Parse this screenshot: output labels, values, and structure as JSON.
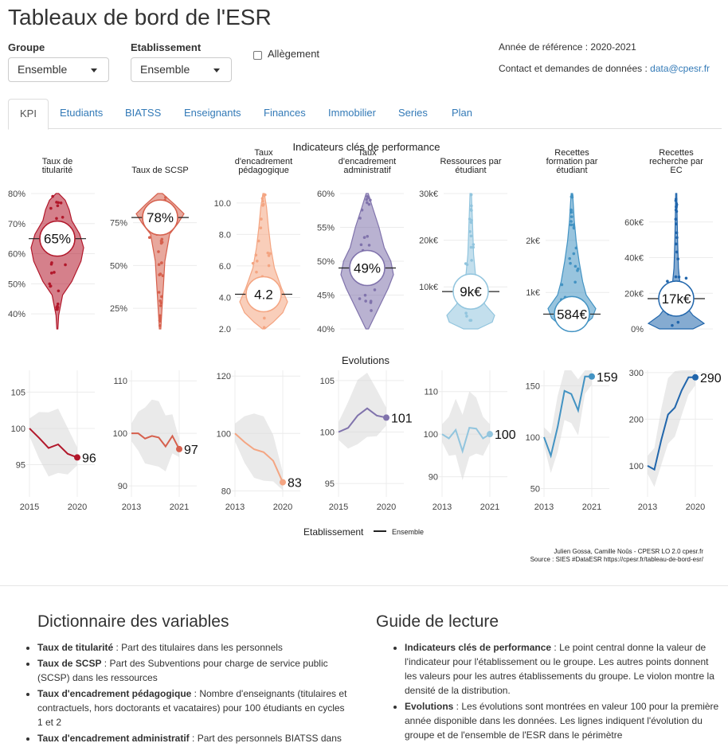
{
  "header": {
    "title": "Tableaux de bord de l'ESR"
  },
  "controls": {
    "groupe_label": "Groupe",
    "groupe_value": "Ensemble",
    "etab_label": "Etablissement",
    "etab_value": "Ensemble",
    "allegement_label": "Allègement",
    "annee": "Année de référence : 2020-2021",
    "contact_prefix": "Contact et demandes de données : ",
    "contact_email": "data@cpesr.fr"
  },
  "tabs": [
    "KPI",
    "Etudiants",
    "BIATSS",
    "Enseignants",
    "Finances",
    "Immobilier",
    "Series",
    "Plan"
  ],
  "figure": {
    "title_kpi": "Indicateurs clés de performance",
    "title_evol": "Evolutions",
    "legend_title": "Etablissement",
    "legend_item": "Ensemble",
    "credit1": "Julien Gossa, Camille Noûs - CPESR LO 2.0 cpesr.fr",
    "credit2": "Source : SIES #DataESR https://cpesr.fr/tableau-de-bord-esr/"
  },
  "colors": {
    "c1": "#b2182b",
    "c2": "#d6604d",
    "c3": "#f4a582",
    "c4": "#8073ac",
    "c5": "#92c5de",
    "c6": "#4393c3",
    "c7": "#2166ac"
  },
  "chart_data": [
    {
      "type": "violin",
      "panels": [
        {
          "title": [
            "Taux de",
            "titularité"
          ],
          "value_label": "65%",
          "value": 65,
          "ylim": [
            35,
            80
          ],
          "ticks": [
            "40%",
            "50%",
            "60%",
            "70%",
            "80%"
          ]
        },
        {
          "title": [
            "Taux de SCSP"
          ],
          "value_label": "78%",
          "value": 78,
          "ylim": [
            13,
            92
          ],
          "ticks": [
            "25%",
            "50%",
            "75%"
          ]
        },
        {
          "title": [
            "Taux",
            "d'encadrement",
            "pédagogique"
          ],
          "value_label": "4.2",
          "value": 4.2,
          "ylim": [
            2,
            10.6
          ],
          "ticks": [
            "2.0",
            "4.0",
            "6.0",
            "8.0",
            "10.0"
          ]
        },
        {
          "title": [
            "Taux",
            "d'encadrement",
            "administratif"
          ],
          "value_label": "49%",
          "value": 49,
          "ylim": [
            40,
            60
          ],
          "ticks": [
            "40%",
            "45%",
            "50%",
            "55%",
            "60%"
          ]
        },
        {
          "title": [
            "Ressources par",
            "étudiant"
          ],
          "value_label": "9k€",
          "value": 9,
          "ylim": [
            1,
            30
          ],
          "ticks": [
            "10k€",
            "20k€",
            "30k€"
          ]
        },
        {
          "title": [
            "Recettes",
            "formation par",
            "étudiant"
          ],
          "value_label": "584€",
          "value": 584,
          "ylim": [
            300,
            2900
          ],
          "ticks": [
            "1k€",
            "2k€"
          ]
        },
        {
          "title": [
            "Recettes",
            "recherche par",
            "EC"
          ],
          "value_label": "17k€",
          "value": 17,
          "ylim": [
            0,
            76
          ],
          "ticks": [
            "0%",
            "20k€",
            "40k€",
            "60k€"
          ]
        }
      ]
    },
    {
      "type": "line",
      "series_label": "Ensemble",
      "panels": [
        {
          "x": [
            2015,
            2016,
            2017,
            2018,
            2019,
            2020
          ],
          "y": [
            100,
            98.7,
            97.3,
            97.8,
            96.5,
            96
          ],
          "end_label": "96",
          "ylim": [
            91,
            108
          ],
          "yticks": [
            "95",
            "100",
            "105"
          ],
          "xticks": [
            "2015",
            "2020"
          ]
        },
        {
          "x": [
            2013,
            2014,
            2015,
            2016,
            2017,
            2018,
            2019,
            2020
          ],
          "y": [
            100,
            100,
            99,
            99.5,
            99.2,
            97.5,
            99.5,
            97
          ],
          "end_label": "97",
          "ylim": [
            88.5,
            112
          ],
          "yticks": [
            "90",
            "100",
            "110"
          ],
          "xticks": [
            "2013",
            "2021"
          ]
        },
        {
          "x": [
            2015,
            2016,
            2017,
            2018,
            2019,
            2020
          ],
          "y": [
            100,
            97,
            94.5,
            93.5,
            90.5,
            83
          ],
          "end_label": "83",
          "ylim": [
            79,
            122
          ],
          "yticks": [
            "80",
            "100",
            "120"
          ],
          "xticks": [
            "2013",
            "2020"
          ]
        },
        {
          "x": [
            2015,
            2016,
            2017,
            2018,
            2019,
            2020
          ],
          "y": [
            100,
            100.4,
            101.6,
            102.3,
            101.6,
            101.4
          ],
          "end_label": "101",
          "ylim": [
            94,
            106
          ],
          "yticks": [
            "95",
            "100",
            "105"
          ],
          "xticks": [
            "2015",
            "2020"
          ]
        },
        {
          "x": [
            2013,
            2014,
            2015,
            2016,
            2017,
            2018,
            2019,
            2020
          ],
          "y": [
            100,
            99,
            101,
            96,
            101.5,
            101.3,
            99,
            100
          ],
          "end_label": "100",
          "ylim": [
            86,
            115
          ],
          "yticks": [
            "90",
            "100",
            "110"
          ],
          "xticks": [
            "2013",
            "2021"
          ]
        },
        {
          "x": [
            2013,
            2014,
            2015,
            2016,
            2017,
            2018,
            2019,
            2020
          ],
          "y": [
            100,
            82,
            110,
            145,
            142,
            126,
            159,
            159
          ],
          "end_label": "159",
          "ylim": [
            45,
            165
          ],
          "yticks": [
            "50",
            "100",
            "150"
          ],
          "xticks": [
            "2013",
            "2021"
          ]
        },
        {
          "x": [
            2013,
            2014,
            2015,
            2016,
            2017,
            2018,
            2019,
            2020
          ],
          "y": [
            100,
            92,
            155,
            210,
            225,
            262,
            290,
            290
          ],
          "end_label": "290",
          "ylim": [
            40,
            305
          ],
          "yticks": [
            "100",
            "200",
            "300"
          ],
          "xticks": [
            "2013",
            "2020"
          ]
        }
      ]
    }
  ],
  "dictionnaire": {
    "title": "Dictionnaire des variables",
    "items": [
      {
        "term": "Taux de titularité",
        "def": " : Part des titulaires dans les personnels"
      },
      {
        "term": "Taux de SCSP",
        "def": " : Part des Subventions pour charge de service public (SCSP) dans les ressources"
      },
      {
        "term": "Taux d'encadrement pédagogique",
        "def": " : Nombre d'enseignants (titulaires et contractuels, hors doctorants et vacataires) pour 100 étudiants en cycles 1 et 2"
      },
      {
        "term": "Taux d'encadrement administratif",
        "def": " : Part des personnels BIATSS dans"
      }
    ]
  },
  "guide": {
    "title": "Guide de lecture",
    "items": [
      {
        "term": "Indicateurs clés de performance",
        "def": " : Le point central donne la valeur de l'indicateur pour l'établissement ou le groupe. Les autres points donnent les valeurs pour les autres établissements du groupe. Le violon montre la densité de la distribution."
      },
      {
        "term": "Evolutions",
        "def": " : Les évolutions sont montrées en valeur 100 pour la première année disponible dans les données. Les lignes indiquent l'évolution du groupe et de l'ensemble de l'ESR dans le périmètre"
      }
    ]
  }
}
